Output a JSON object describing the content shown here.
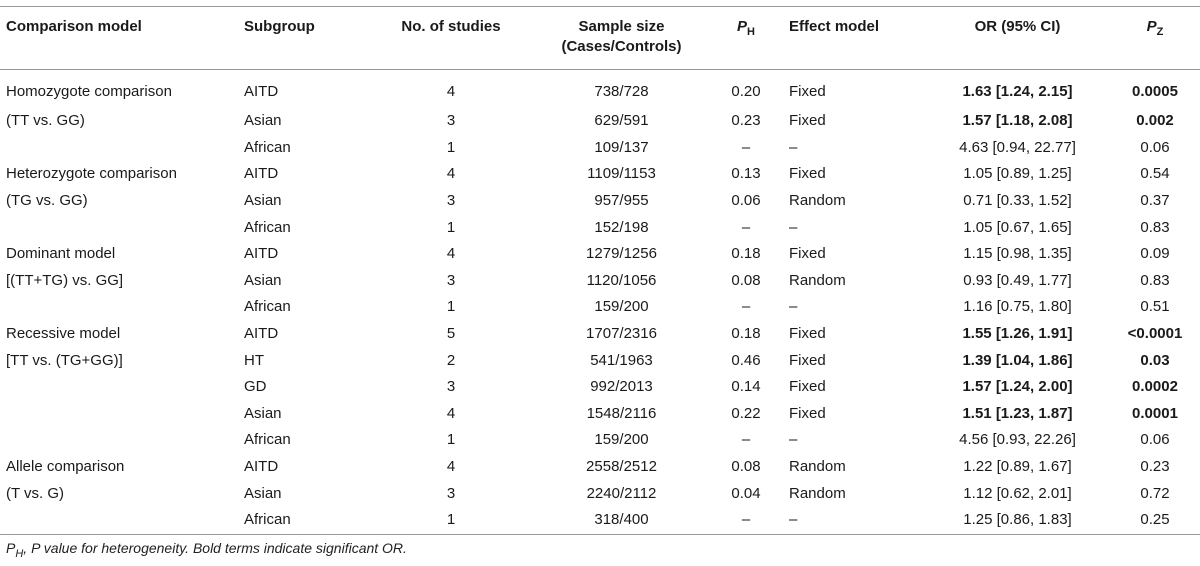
{
  "headers": {
    "model": "Comparison model",
    "subgroup": "Subgroup",
    "studies": "No. of studies",
    "sample_line1": "Sample size",
    "sample_line2": "(Cases/Controls)",
    "ph_main": "P",
    "ph_sub": "H",
    "effect": "Effect model",
    "or": "OR (95% CI)",
    "pz_main": "P",
    "pz_sub": "Z"
  },
  "rows": [
    {
      "model": "Homozygote comparison",
      "subgroup": "AITD",
      "studies": "4",
      "sample": "738/728",
      "ph": "0.20",
      "effect": "Fixed",
      "or": "1.63 [1.24, 2.15]",
      "pz": "0.0005",
      "bold": true
    },
    {
      "model": "(TT vs. GG)",
      "subgroup": "Asian",
      "studies": "3",
      "sample": "629/591",
      "ph": "0.23",
      "effect": "Fixed",
      "or": "1.57 [1.18, 2.08]",
      "pz": "0.002",
      "bold": true
    },
    {
      "model": "",
      "subgroup": "African",
      "studies": "1",
      "sample": "109/137",
      "ph": "–",
      "effect": "–",
      "or": "4.63 [0.94, 22.77]",
      "pz": "0.06",
      "bold": false
    },
    {
      "model": "Heterozygote comparison",
      "subgroup": "AITD",
      "studies": "4",
      "sample": "1109/1153",
      "ph": "0.13",
      "effect": "Fixed",
      "or": "1.05 [0.89, 1.25]",
      "pz": "0.54",
      "bold": false
    },
    {
      "model": "(TG vs. GG)",
      "subgroup": "Asian",
      "studies": "3",
      "sample": "957/955",
      "ph": "0.06",
      "effect": "Random",
      "or": "0.71 [0.33, 1.52]",
      "pz": "0.37",
      "bold": false
    },
    {
      "model": "",
      "subgroup": "African",
      "studies": "1",
      "sample": "152/198",
      "ph": "–",
      "effect": "–",
      "or": "1.05 [0.67, 1.65]",
      "pz": "0.83",
      "bold": false
    },
    {
      "model": "Dominant model",
      "subgroup": "AITD",
      "studies": "4",
      "sample": "1279/1256",
      "ph": "0.18",
      "effect": "Fixed",
      "or": "1.15 [0.98, 1.35]",
      "pz": "0.09",
      "bold": false
    },
    {
      "model": "[(TT+TG) vs. GG]",
      "subgroup": "Asian",
      "studies": "3",
      "sample": "1120/1056",
      "ph": "0.08",
      "effect": "Random",
      "or": "0.93 [0.49, 1.77]",
      "pz": "0.83",
      "bold": false
    },
    {
      "model": "",
      "subgroup": "African",
      "studies": "1",
      "sample": "159/200",
      "ph": "–",
      "effect": "–",
      "or": "1.16 [0.75, 1.80]",
      "pz": "0.51",
      "bold": false
    },
    {
      "model": "Recessive model",
      "subgroup": "AITD",
      "studies": "5",
      "sample": "1707/2316",
      "ph": "0.18",
      "effect": "Fixed",
      "or": "1.55 [1.26, 1.91]",
      "pz": "<0.0001",
      "bold": true
    },
    {
      "model": "[TT vs. (TG+GG)]",
      "subgroup": "HT",
      "studies": "2",
      "sample": "541/1963",
      "ph": "0.46",
      "effect": "Fixed",
      "or": "1.39 [1.04, 1.86]",
      "pz": "0.03",
      "bold": true
    },
    {
      "model": "",
      "subgroup": "GD",
      "studies": "3",
      "sample": "992/2013",
      "ph": "0.14",
      "effect": "Fixed",
      "or": "1.57 [1.24, 2.00]",
      "pz": "0.0002",
      "bold": true
    },
    {
      "model": "",
      "subgroup": "Asian",
      "studies": "4",
      "sample": "1548/2116",
      "ph": "0.22",
      "effect": "Fixed",
      "or": "1.51 [1.23, 1.87]",
      "pz": "0.0001",
      "bold": true
    },
    {
      "model": "",
      "subgroup": "African",
      "studies": "1",
      "sample": "159/200",
      "ph": "–",
      "effect": "–",
      "or": "4.56 [0.93, 22.26]",
      "pz": "0.06",
      "bold": false
    },
    {
      "model": "Allele comparison",
      "subgroup": "AITD",
      "studies": "4",
      "sample": "2558/2512",
      "ph": "0.08",
      "effect": "Random",
      "or": "1.22 [0.89, 1.67]",
      "pz": "0.23",
      "bold": false
    },
    {
      "model": "(T vs. G)",
      "subgroup": "Asian",
      "studies": "3",
      "sample": "2240/2112",
      "ph": "0.04",
      "effect": "Random",
      "or": "1.12 [0.62, 2.01]",
      "pz": "0.72",
      "bold": false
    },
    {
      "model": "",
      "subgroup": "African",
      "studies": "1",
      "sample": "318/400",
      "ph": "–",
      "effect": "–",
      "or": "1.25 [0.86, 1.83]",
      "pz": "0.25",
      "bold": false
    }
  ],
  "footnote": {
    "sym_main": "P",
    "sym_sub": "H",
    "text": ", P value for heterogeneity. Bold terms indicate significant OR."
  }
}
